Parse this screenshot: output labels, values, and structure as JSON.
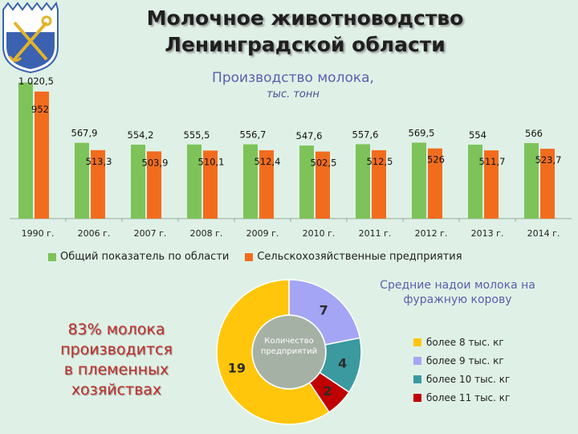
{
  "header": {
    "title_line1": "Молочное животноводство",
    "title_line2": "Ленинградской области"
  },
  "colors": {
    "series_total": "#7dc35a",
    "series_agro": "#f26c1e",
    "donut": [
      "#ffc60b",
      "#a5a5f5",
      "#3a9aa0",
      "#c00000"
    ]
  },
  "chart_data": [
    {
      "type": "bar",
      "title": "Производство молока,",
      "subtitle": "тыс. тонн",
      "categories": [
        "1990 г.",
        "2006 г.",
        "2007 г.",
        "2008 г.",
        "2009 г.",
        "2010 г.",
        "2011 г.",
        "2012 г.",
        "2013 г.",
        "2014 г."
      ],
      "series": [
        {
          "name": "Общий показатель по области",
          "values": [
            1020.5,
            567.9,
            554.2,
            555.5,
            556.7,
            547.6,
            557.6,
            569.5,
            554,
            566
          ],
          "labels": [
            "1 020,5",
            "567,9",
            "554,2",
            "555,5",
            "556,7",
            "547,6",
            "557,6",
            "569,5",
            "554",
            "566"
          ]
        },
        {
          "name": "Сельскохозяйственные предприятия",
          "values": [
            952,
            513.3,
            503.9,
            510.1,
            512.4,
            502.5,
            512.5,
            526,
            511.7,
            523.7
          ],
          "labels": [
            "952",
            "513,3",
            "503,9",
            "510,1",
            "512,4",
            "502,5",
            "512,5",
            "526",
            "511,7",
            "523,7"
          ]
        }
      ],
      "legend": "bottom"
    },
    {
      "type": "pie",
      "title": "Средние надои молока на фуражную корову",
      "center_label": "Количество предприятий",
      "categories": [
        "более 8 тыс. кг",
        "более 9 тыс. кг",
        "более 10 тыс. кг",
        "более 11 тыс. кг"
      ],
      "values": [
        19,
        7,
        4,
        2
      ],
      "legend": "right"
    }
  ],
  "callout": {
    "line1": "83% молока",
    "line2": "производится",
    "line3": "в племенных",
    "line4": "хозяйствах"
  }
}
